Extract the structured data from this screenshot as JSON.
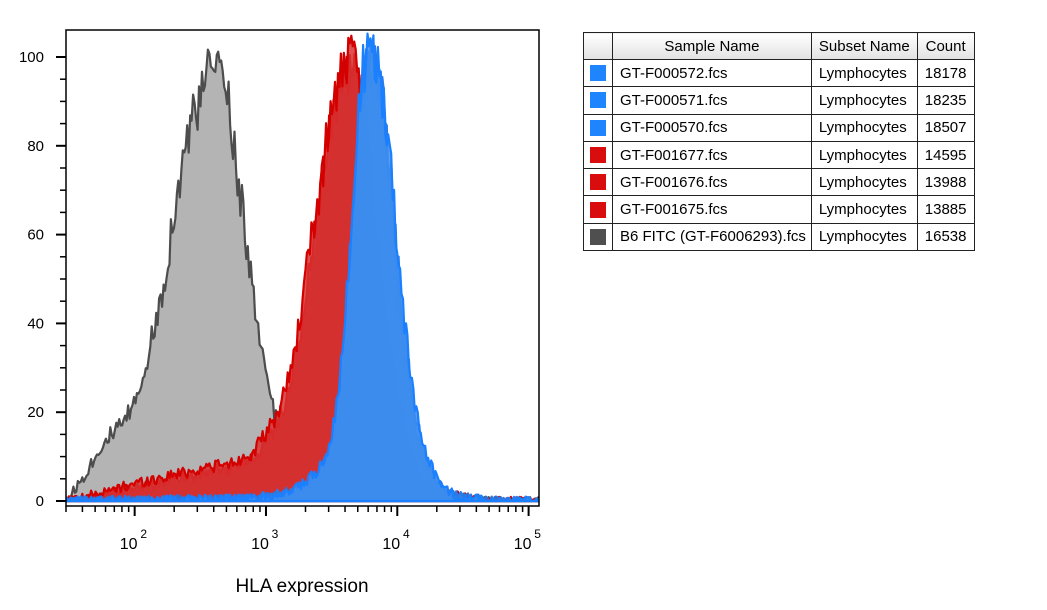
{
  "chart_data": {
    "type": "area",
    "title": "",
    "xlabel": "HLA expression",
    "ylabel": "",
    "x_scale": "log",
    "xlim": [
      30,
      120000
    ],
    "ylim": [
      0,
      104
    ],
    "x_ticks": [
      {
        "value": 100,
        "base": "10",
        "exp": "2"
      },
      {
        "value": 1000,
        "base": "10",
        "exp": "3"
      },
      {
        "value": 10000,
        "base": "10",
        "exp": "4"
      },
      {
        "value": 100000,
        "base": "10",
        "exp": "5"
      }
    ],
    "y_ticks": [
      {
        "value": 0,
        "label": "0"
      },
      {
        "value": 20,
        "label": "20"
      },
      {
        "value": 40,
        "label": "40"
      },
      {
        "value": 60,
        "label": "60"
      },
      {
        "value": 80,
        "label": "80"
      },
      {
        "value": 100,
        "label": "100"
      }
    ],
    "legend_columns": [
      "Sample Name",
      "Subset Name",
      "Count"
    ],
    "series": [
      {
        "name": "GT-F000572.fcs",
        "subset": "Lymphocytes",
        "count": "18178",
        "color": "#1e85ff",
        "fill": "#3d8ef0",
        "stroke": "#1a80ff",
        "x": [
          30,
          700,
          1000,
          1500,
          2000,
          2500,
          3000,
          3500,
          4000,
          4500,
          5000,
          5500,
          6000,
          6500,
          7000,
          7500,
          8000,
          9000,
          10000,
          11000,
          12000,
          14000,
          16000,
          20000,
          25000,
          30000,
          40000,
          50000,
          70000,
          120000
        ],
        "y": [
          0,
          0.5,
          1,
          2,
          4,
          7,
          12,
          22,
          40,
          62,
          85,
          97,
          100,
          101,
          99,
          94,
          88,
          75,
          58,
          45,
          34,
          20,
          12,
          5,
          2,
          1,
          0.5,
          0,
          0,
          0
        ]
      },
      {
        "name": "GT-F000571.fcs",
        "subset": "Lymphocytes",
        "count": "18235",
        "color": "#1e85ff",
        "fill": "#3a86e6",
        "stroke": "#2a7be8",
        "x": [
          30,
          700,
          1000,
          1500,
          2000,
          2500,
          3000,
          3500,
          4000,
          4500,
          5000,
          5500,
          6000,
          6500,
          7000,
          7500,
          8000,
          9000,
          10000,
          11000,
          12000,
          14000,
          16000,
          20000,
          25000,
          30000,
          40000,
          50000,
          70000,
          120000
        ],
        "y": [
          0,
          0.5,
          1,
          2,
          3,
          6,
          11,
          20,
          38,
          60,
          82,
          95,
          98,
          99,
          97,
          92,
          86,
          72,
          55,
          42,
          31,
          18,
          11,
          4,
          2,
          1,
          0.5,
          0,
          0,
          0
        ]
      },
      {
        "name": "GT-F000570.fcs",
        "subset": "Lymphocytes",
        "count": "18507",
        "color": "#1e85ff",
        "fill": "#2f6fd0",
        "stroke": "#3071d6",
        "x": [
          30,
          700,
          1000,
          1500,
          2000,
          2500,
          3000,
          3500,
          4000,
          4500,
          5000,
          5500,
          6000,
          6500,
          7000,
          7500,
          8000,
          9000,
          10000,
          11000,
          12000,
          14000,
          16000,
          20000,
          25000,
          30000,
          40000,
          50000,
          70000,
          120000
        ],
        "y": [
          0,
          0.5,
          1,
          2,
          3,
          5,
          9,
          17,
          33,
          55,
          78,
          92,
          97,
          98,
          96,
          90,
          83,
          68,
          50,
          38,
          28,
          15,
          9,
          3,
          1.5,
          1,
          0.5,
          0,
          0,
          0
        ]
      },
      {
        "name": "GT-F001677.fcs",
        "subset": "Lymphocytes",
        "count": "14595",
        "color": "#d90d0d",
        "fill": "#d83232",
        "stroke": "#d40000",
        "x": [
          30,
          60,
          100,
          150,
          200,
          300,
          400,
          500,
          600,
          800,
          1000,
          1200,
          1500,
          1800,
          2000,
          2200,
          2500,
          2800,
          3000,
          3300,
          3600,
          4000,
          4500,
          5000,
          5500,
          6000,
          7000,
          8000,
          10000,
          12000,
          15000,
          20000,
          30000,
          40000,
          120000
        ],
        "y": [
          0,
          2,
          4,
          5,
          6,
          7,
          8,
          8,
          9,
          11,
          15,
          19,
          28,
          40,
          50,
          58,
          68,
          78,
          84,
          90,
          95,
          98,
          99,
          97,
          90,
          80,
          60,
          44,
          24,
          13,
          5,
          2,
          1,
          0,
          0
        ]
      },
      {
        "name": "GT-F001676.fcs",
        "subset": "Lymphocytes",
        "count": "13988",
        "color": "#d90d0d",
        "fill": "#c42020",
        "stroke": "#cc0000",
        "x": [
          30,
          60,
          100,
          150,
          200,
          300,
          400,
          500,
          600,
          800,
          1000,
          1200,
          1500,
          1800,
          2000,
          2200,
          2500,
          2800,
          3000,
          3300,
          3600,
          4000,
          4500,
          5000,
          5500,
          6000,
          7000,
          8000,
          10000,
          12000,
          15000,
          20000,
          30000,
          40000,
          120000
        ],
        "y": [
          0,
          1.5,
          3,
          4,
          5,
          6,
          7,
          7,
          8,
          10,
          13,
          17,
          25,
          36,
          46,
          54,
          65,
          75,
          81,
          88,
          93,
          97,
          98,
          95,
          88,
          77,
          57,
          42,
          22,
          12,
          5,
          2,
          1,
          0,
          0
        ]
      },
      {
        "name": "GT-F001675.fcs",
        "subset": "Lymphocytes",
        "count": "13885",
        "color": "#d90d0d",
        "fill": "#b51c1c",
        "stroke": "#c20000",
        "x": [
          30,
          60,
          100,
          150,
          200,
          300,
          400,
          500,
          600,
          800,
          1000,
          1200,
          1500,
          1800,
          2000,
          2200,
          2500,
          2800,
          3000,
          3300,
          3600,
          4000,
          4500,
          5000,
          5500,
          6000,
          7000,
          8000,
          10000,
          12000,
          15000,
          20000,
          30000,
          40000,
          120000
        ],
        "y": [
          0,
          1,
          2,
          3,
          4,
          5,
          6,
          6,
          7,
          9,
          12,
          16,
          23,
          33,
          43,
          51,
          62,
          72,
          78,
          86,
          91,
          95,
          96,
          93,
          86,
          75,
          55,
          40,
          21,
          11,
          4,
          2,
          1,
          0,
          0
        ]
      },
      {
        "name": "B6 FITC (GT-F6006293).fcs",
        "subset": "Lymphocytes",
        "count": "16538",
        "color": "#4f4f4f",
        "fill": "#b4b4b4",
        "stroke": "#4d4d4d",
        "x": [
          30,
          40,
          50,
          60,
          80,
          100,
          120,
          150,
          180,
          200,
          230,
          260,
          300,
          330,
          360,
          400,
          450,
          500,
          550,
          600,
          700,
          800,
          900,
          1000,
          1200,
          1500,
          1800,
          2000,
          2500,
          3000,
          4000,
          6000,
          120000
        ],
        "y": [
          0,
          5,
          10,
          14,
          17,
          22,
          30,
          42,
          55,
          66,
          75,
          84,
          88,
          92,
          96,
          99,
          97,
          93,
          85,
          75,
          60,
          46,
          35,
          28,
          18,
          12,
          6,
          4,
          2,
          1,
          0.5,
          0,
          0
        ]
      }
    ]
  }
}
